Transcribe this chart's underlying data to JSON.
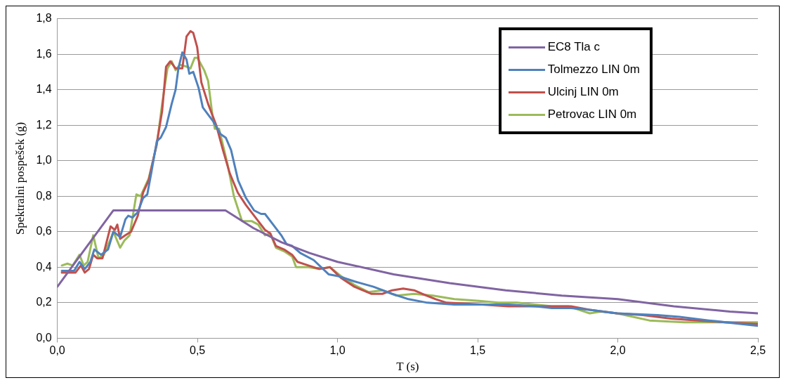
{
  "chart_data": {
    "type": "line",
    "xlabel": "T (s)",
    "ylabel": "Spektralni pospešek (g)",
    "xlim": [
      0,
      2.5
    ],
    "xticks": [
      {
        "value": 0,
        "label": "0,0"
      },
      {
        "value": 0.5,
        "label": "0,5"
      },
      {
        "value": 1,
        "label": "1,0"
      },
      {
        "value": 1.5,
        "label": "1,5"
      },
      {
        "value": 2,
        "label": "2,0"
      },
      {
        "value": 2.5,
        "label": "2,5"
      }
    ],
    "ylim": [
      0,
      1.8
    ],
    "yticks": [
      {
        "value": 0,
        "label": "0,0"
      },
      {
        "value": 0.2,
        "label": "0,2"
      },
      {
        "value": 0.4,
        "label": "0,4"
      },
      {
        "value": 0.6,
        "label": "0,6"
      },
      {
        "value": 0.8,
        "label": "0,8"
      },
      {
        "value": 1,
        "label": "1,0"
      },
      {
        "value": 1.2,
        "label": "1,2"
      },
      {
        "value": 1.4,
        "label": "1,4"
      },
      {
        "value": 1.6,
        "label": "1,6"
      },
      {
        "value": 1.8,
        "label": "1,8"
      }
    ],
    "grid": "y",
    "legend": "top right",
    "marker": "none",
    "line_style": "solid",
    "series": [
      {
        "name": "EC8 Tla c",
        "color": "#8064a2",
        "x": [
          0,
          0.2,
          0.6,
          0.7,
          0.8,
          0.9,
          1.0,
          1.2,
          1.4,
          1.6,
          1.8,
          2.0,
          2.2,
          2.4,
          2.5
        ],
        "values": [
          0.29,
          0.72,
          0.72,
          0.62,
          0.54,
          0.48,
          0.43,
          0.36,
          0.31,
          0.27,
          0.24,
          0.22,
          0.18,
          0.15,
          0.14
        ]
      },
      {
        "name": "Tolmezzo LIN 0m",
        "color": "#4f81bd",
        "x": [
          0.016,
          0.06,
          0.079,
          0.098,
          0.118,
          0.132,
          0.156,
          0.181,
          0.2,
          0.224,
          0.243,
          0.253,
          0.268,
          0.287,
          0.306,
          0.321,
          0.335,
          0.355,
          0.369,
          0.388,
          0.408,
          0.422,
          0.432,
          0.446,
          0.461,
          0.471,
          0.485,
          0.504,
          0.519,
          0.538,
          0.557,
          0.582,
          0.601,
          0.62,
          0.645,
          0.673,
          0.702,
          0.727,
          0.741,
          0.77,
          0.799,
          0.818,
          0.838,
          0.867,
          0.915,
          0.968,
          1.002,
          1.06,
          1.128,
          1.195,
          1.253,
          1.32,
          1.417,
          1.61,
          1.707,
          1.765,
          1.833,
          1.9,
          1.997,
          2.142,
          2.22,
          2.325,
          2.5
        ],
        "values": [
          0.38,
          0.38,
          0.43,
          0.39,
          0.43,
          0.5,
          0.47,
          0.5,
          0.6,
          0.57,
          0.67,
          0.69,
          0.68,
          0.71,
          0.79,
          0.81,
          0.93,
          1.11,
          1.13,
          1.19,
          1.32,
          1.4,
          1.52,
          1.61,
          1.57,
          1.49,
          1.5,
          1.41,
          1.3,
          1.26,
          1.22,
          1.15,
          1.13,
          1.06,
          0.89,
          0.79,
          0.72,
          0.7,
          0.7,
          0.64,
          0.58,
          0.53,
          0.52,
          0.48,
          0.44,
          0.36,
          0.35,
          0.32,
          0.29,
          0.25,
          0.22,
          0.2,
          0.19,
          0.19,
          0.18,
          0.17,
          0.17,
          0.16,
          0.14,
          0.13,
          0.12,
          0.1,
          0.07
        ]
      },
      {
        "name": "Ulcinj LIN 0m",
        "color": "#c0504d",
        "x": [
          0.016,
          0.065,
          0.084,
          0.098,
          0.113,
          0.128,
          0.142,
          0.161,
          0.19,
          0.205,
          0.214,
          0.224,
          0.243,
          0.263,
          0.287,
          0.306,
          0.326,
          0.354,
          0.374,
          0.388,
          0.403,
          0.422,
          0.446,
          0.461,
          0.475,
          0.485,
          0.499,
          0.514,
          0.538,
          0.567,
          0.591,
          0.615,
          0.644,
          0.673,
          0.712,
          0.741,
          0.76,
          0.78,
          0.809,
          0.838,
          0.857,
          0.896,
          0.935,
          0.973,
          1.012,
          1.06,
          1.12,
          1.16,
          1.195,
          1.234,
          1.273,
          1.302,
          1.35,
          1.389,
          1.515,
          1.61,
          1.707,
          1.765,
          1.833,
          1.9,
          1.997,
          2.09,
          2.19,
          2.286,
          2.383,
          2.5
        ],
        "values": [
          0.37,
          0.37,
          0.41,
          0.37,
          0.39,
          0.47,
          0.45,
          0.45,
          0.63,
          0.61,
          0.64,
          0.56,
          0.58,
          0.6,
          0.69,
          0.82,
          0.89,
          1.09,
          1.28,
          1.53,
          1.56,
          1.52,
          1.52,
          1.7,
          1.73,
          1.72,
          1.64,
          1.44,
          1.32,
          1.2,
          1.06,
          0.93,
          0.82,
          0.75,
          0.67,
          0.61,
          0.59,
          0.52,
          0.5,
          0.47,
          0.43,
          0.41,
          0.39,
          0.4,
          0.34,
          0.29,
          0.25,
          0.25,
          0.27,
          0.28,
          0.27,
          0.25,
          0.22,
          0.2,
          0.19,
          0.18,
          0.18,
          0.18,
          0.18,
          0.16,
          0.14,
          0.13,
          0.11,
          0.1,
          0.09,
          0.08
        ]
      },
      {
        "name": "Petrovac LIN 0m",
        "color": "#9bbb59",
        "x": [
          0.016,
          0.036,
          0.055,
          0.079,
          0.094,
          0.108,
          0.128,
          0.147,
          0.166,
          0.185,
          0.2,
          0.224,
          0.239,
          0.258,
          0.282,
          0.297,
          0.326,
          0.355,
          0.374,
          0.393,
          0.408,
          0.422,
          0.437,
          0.461,
          0.475,
          0.49,
          0.5,
          0.524,
          0.538,
          0.553,
          0.562,
          0.577,
          0.606,
          0.63,
          0.659,
          0.693,
          0.717,
          0.741,
          0.76,
          0.78,
          0.809,
          0.838,
          0.852,
          0.896,
          0.935,
          0.973,
          1.012,
          1.06,
          1.11,
          1.16,
          1.21,
          1.273,
          1.34,
          1.417,
          1.505,
          1.573,
          1.64,
          1.765,
          1.823,
          1.9,
          1.939,
          1.997,
          2.113,
          2.238,
          2.325,
          2.5
        ],
        "values": [
          0.41,
          0.42,
          0.41,
          0.47,
          0.41,
          0.43,
          0.58,
          0.45,
          0.47,
          0.54,
          0.6,
          0.51,
          0.55,
          0.58,
          0.81,
          0.8,
          0.9,
          1.09,
          1.32,
          1.52,
          1.56,
          1.51,
          1.54,
          1.53,
          1.52,
          1.58,
          1.58,
          1.51,
          1.45,
          1.26,
          1.18,
          1.18,
          0.99,
          0.8,
          0.66,
          0.66,
          0.64,
          0.58,
          0.59,
          0.51,
          0.49,
          0.46,
          0.4,
          0.4,
          0.39,
          0.4,
          0.35,
          0.3,
          0.26,
          0.27,
          0.24,
          0.25,
          0.24,
          0.22,
          0.21,
          0.2,
          0.2,
          0.18,
          0.18,
          0.14,
          0.15,
          0.14,
          0.1,
          0.09,
          0.09,
          0.09
        ]
      }
    ]
  }
}
